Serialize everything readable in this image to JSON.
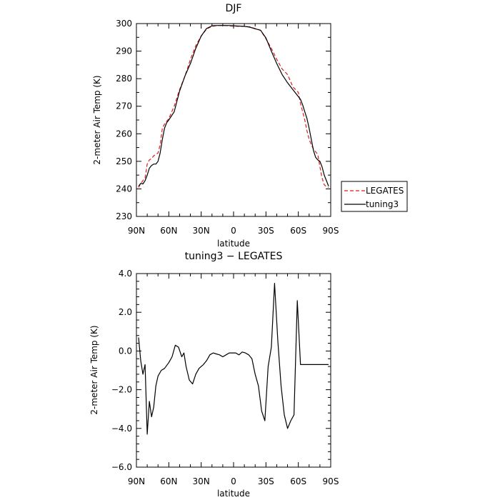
{
  "chart_data": [
    {
      "type": "line",
      "title": "DJF",
      "xlabel": "latitude",
      "ylabel": "2-meter Air Temp (K)",
      "xlim": [
        90,
        -90
      ],
      "ylim": [
        230,
        300
      ],
      "x_ticks": [
        90,
        60,
        30,
        0,
        -30,
        -60,
        -90
      ],
      "x_tick_labels": [
        "90N",
        "60N",
        "30N",
        "0",
        "30S",
        "60S",
        "90S"
      ],
      "y_ticks": [
        230,
        240,
        250,
        260,
        270,
        280,
        290,
        300
      ],
      "y_tick_labels": [
        "230",
        "240",
        "250",
        "260",
        "270",
        "280",
        "290",
        "300"
      ],
      "legend": "right",
      "grid": false,
      "series": [
        {
          "name": "LEGATES",
          "color": "#e0191c",
          "style": "dashed",
          "x": [
            88,
            86,
            84,
            82,
            80,
            78,
            76,
            74,
            72,
            70,
            68,
            66,
            64,
            62,
            60,
            55,
            50,
            45,
            40,
            35,
            30,
            25,
            20,
            15,
            10,
            5,
            0,
            -5,
            -10,
            -15,
            -20,
            -25,
            -30,
            -35,
            -40,
            -45,
            -50,
            -55,
            -60,
            -62,
            -64,
            -66,
            -68,
            -70,
            -72,
            -74,
            -76,
            -78,
            -80,
            -82,
            -84,
            -86,
            -88
          ],
          "values": [
            240.5,
            242.0,
            243.0,
            244.0,
            249.0,
            250.5,
            251.0,
            252.0,
            252.5,
            253.0,
            256.0,
            262.0,
            263.5,
            264.5,
            265.5,
            270.0,
            276.0,
            281.0,
            287.0,
            292.0,
            295.5,
            298.0,
            299.0,
            299.3,
            299.3,
            299.2,
            299.1,
            299.0,
            299.0,
            298.8,
            298.2,
            297.5,
            294.5,
            291.0,
            287.0,
            283.5,
            281.5,
            277.0,
            275.0,
            271.0,
            268.0,
            265.0,
            261.0,
            258.0,
            256.0,
            254.5,
            253.5,
            252.5,
            248.0,
            244.0,
            241.5,
            240.8,
            240.5
          ]
        },
        {
          "name": "tuning3",
          "color": "#000000",
          "style": "solid",
          "x": [
            88,
            86,
            84,
            82,
            80,
            78,
            76,
            74,
            72,
            70,
            68,
            66,
            64,
            62,
            60,
            55,
            50,
            45,
            40,
            35,
            30,
            25,
            20,
            15,
            10,
            5,
            0,
            -5,
            -10,
            -15,
            -20,
            -25,
            -30,
            -35,
            -40,
            -45,
            -50,
            -55,
            -60,
            -62,
            -64,
            -66,
            -68,
            -70,
            -72,
            -74,
            -76,
            -78,
            -80,
            -82,
            -84,
            -86,
            -88
          ],
          "values": [
            241.0,
            242.0,
            241.8,
            243.0,
            245.0,
            247.5,
            248.5,
            249.0,
            249.0,
            250.0,
            253.0,
            258.0,
            262.0,
            264.0,
            265.0,
            268.0,
            275.5,
            281.0,
            285.5,
            291.0,
            295.5,
            298.2,
            299.2,
            299.3,
            299.3,
            299.3,
            299.2,
            299.1,
            299.0,
            298.7,
            298.1,
            297.6,
            294.8,
            290.0,
            285.5,
            281.5,
            278.5,
            276.0,
            273.5,
            272.5,
            270.5,
            268.0,
            265.5,
            262.0,
            258.0,
            254.0,
            251.5,
            250.5,
            250.0,
            248.0,
            245.0,
            243.0,
            241.0
          ]
        }
      ]
    },
    {
      "type": "line",
      "title": "tuning3 − LEGATES",
      "xlabel": "latitude",
      "ylabel": "2-meter Air Temp (K)",
      "xlim": [
        90,
        -90
      ],
      "ylim": [
        -6.0,
        4.0
      ],
      "x_ticks": [
        90,
        60,
        30,
        0,
        -30,
        -60,
        -90
      ],
      "x_tick_labels": [
        "90N",
        "60N",
        "30N",
        "0",
        "30S",
        "60S",
        "90S"
      ],
      "y_ticks": [
        -6.0,
        -4.0,
        -2.0,
        0.0,
        2.0,
        4.0
      ],
      "y_tick_labels": [
        "−6.0",
        "−4.0",
        "−2.0",
        "0.0",
        "2.0",
        "4.0"
      ],
      "grid": false,
      "series": [
        {
          "color": "#000000",
          "style": "solid",
          "x": [
            88,
            86,
            84,
            82,
            80,
            78,
            76,
            74,
            72,
            70,
            67,
            64,
            60,
            57,
            54,
            51,
            48,
            46,
            44,
            41,
            38,
            35,
            32,
            30,
            28,
            25,
            22,
            19,
            16,
            13,
            10,
            7,
            4,
            1,
            -2,
            -5,
            -8,
            -11,
            -14,
            -17,
            -20,
            -23,
            -26,
            -29,
            -32,
            -35,
            -38,
            -41,
            -44,
            -47,
            -50,
            -53,
            -56,
            -59,
            -62,
            -65,
            -68,
            -71,
            -74,
            -77,
            -80,
            -83,
            -86,
            -88
          ],
          "values": [
            0.7,
            -0.5,
            -1.2,
            -0.7,
            -4.3,
            -2.6,
            -3.4,
            -2.9,
            -1.8,
            -1.3,
            -1.0,
            -0.9,
            -0.6,
            -0.3,
            0.3,
            0.2,
            -0.3,
            -0.1,
            -0.8,
            -1.5,
            -1.7,
            -1.2,
            -0.9,
            -0.8,
            -0.7,
            -0.5,
            -0.2,
            -0.1,
            -0.15,
            -0.2,
            -0.3,
            -0.2,
            -0.1,
            -0.1,
            -0.1,
            -0.2,
            -0.05,
            -0.1,
            -0.2,
            -0.4,
            -1.2,
            -1.8,
            -3.1,
            -3.6,
            -0.8,
            0.2,
            3.5,
            0.5,
            -1.8,
            -3.3,
            -4.0,
            -3.6,
            -3.3,
            2.6,
            -0.7,
            -0.7,
            -0.7,
            -0.7,
            -0.7,
            -0.7,
            -0.7,
            -0.7,
            -0.7,
            -0.7
          ]
        }
      ]
    }
  ]
}
